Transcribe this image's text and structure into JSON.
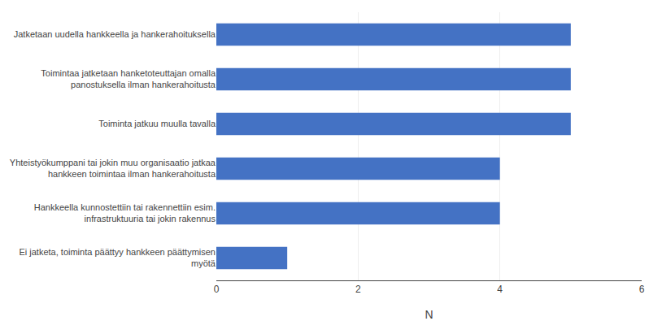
{
  "chart_data": {
    "type": "bar",
    "orientation": "horizontal",
    "categories": [
      "Jatketaan uudella hankkeella ja hankerahoituksella",
      "Toimintaa jatketaan hanketoteuttajan omalla\npanostuksella ilman hankerahoitusta",
      "Toiminta jatkuu muulla tavalla",
      "Yhteistyökumppani tai jokin muu organisaatio jatkaa\nhankkeen toimintaa ilman hankerahoitusta",
      "Hankkeella kunnostettiin tai rakennettiin esim.\ninfrastruktuuria tai jokin rakennus",
      "Ei jatketa, toiminta päättyy hankkeen päättymisen\nmyötä"
    ],
    "values": [
      5,
      5,
      5,
      4,
      4,
      1
    ],
    "color": "#4472C4",
    "xlabel": "N",
    "xlim": [
      0,
      6
    ],
    "xticks": [
      0,
      2,
      4,
      6
    ],
    "grid": true
  }
}
